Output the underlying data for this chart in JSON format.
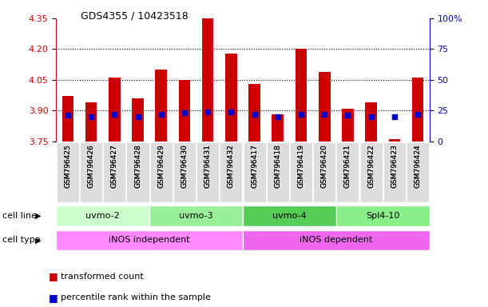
{
  "title": "GDS4355 / 10423518",
  "samples": [
    "GSM796425",
    "GSM796426",
    "GSM796427",
    "GSM796428",
    "GSM796429",
    "GSM796430",
    "GSM796431",
    "GSM796432",
    "GSM796417",
    "GSM796418",
    "GSM796419",
    "GSM796420",
    "GSM796421",
    "GSM796422",
    "GSM796423",
    "GSM796424"
  ],
  "transformed_count": [
    3.97,
    3.94,
    4.06,
    3.96,
    4.1,
    4.05,
    4.35,
    4.18,
    4.03,
    3.88,
    4.2,
    4.09,
    3.91,
    3.94,
    3.76,
    4.06
  ],
  "percentile_rank": [
    21,
    20,
    22,
    20,
    22,
    23,
    24,
    24,
    22,
    20,
    22,
    22,
    21,
    20,
    20,
    22
  ],
  "cell_lines": [
    {
      "label": "uvmo-2",
      "start": 0,
      "end": 4,
      "color": "#ccffcc"
    },
    {
      "label": "uvmo-3",
      "start": 4,
      "end": 8,
      "color": "#99ee99"
    },
    {
      "label": "uvmo-4",
      "start": 8,
      "end": 12,
      "color": "#55cc55"
    },
    {
      "label": "Spl4-10",
      "start": 12,
      "end": 16,
      "color": "#88ee88"
    }
  ],
  "cell_types": [
    {
      "label": "iNOS independent",
      "start": 0,
      "end": 8,
      "color": "#ff88ff"
    },
    {
      "label": "iNOS dependent",
      "start": 8,
      "end": 16,
      "color": "#ee66ee"
    }
  ],
  "ylim": [
    3.75,
    4.35
  ],
  "yticks": [
    3.75,
    3.9,
    4.05,
    4.2,
    4.35
  ],
  "y2ticks": [
    0,
    25,
    50,
    75,
    100
  ],
  "bar_color": "#cc0000",
  "dot_color": "#0000cc",
  "bar_width": 0.5,
  "legend_transformed": "transformed count",
  "legend_percentile": "percentile rank within the sample",
  "cell_line_label": "cell line",
  "cell_type_label": "cell type",
  "grid_lines": [
    3.9,
    4.05,
    4.2
  ]
}
